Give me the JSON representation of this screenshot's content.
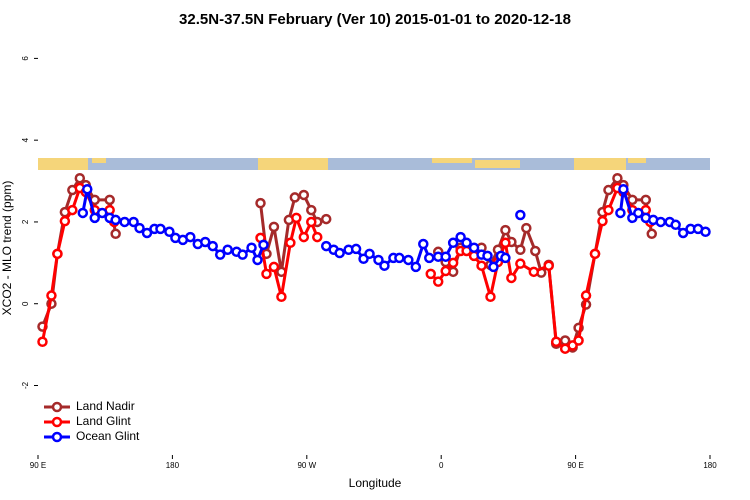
{
  "chart_data": {
    "type": "line",
    "title": "32.5N-37.5N February (Ver 10)   2015-01-01 to 2020-12-18",
    "x_label": "Longitude",
    "y_label": "XCO2 - MLO trend (ppm)",
    "xlim": [
      90,
      540
    ],
    "ylim": [
      -3.7,
      6.45
    ],
    "xticks": [
      {
        "value": 90,
        "label": "90 E"
      },
      180,
      {
        "value": 270,
        "label": "90 W"
      },
      {
        "value": 360,
        "label": "0"
      },
      {
        "value": 450,
        "label": "90 E"
      },
      {
        "value": 540,
        "label": "180"
      }
    ],
    "yticks": [
      -2,
      0,
      2,
      4,
      6
    ],
    "legend": "bottom-left",
    "series": [
      {
        "name": "Land Nadir",
        "color": "#a52a2a",
        "x": [
          93,
          99,
          103,
          108,
          113,
          118,
          122,
          128,
          138,
          142,
          null,
          239,
          243,
          248,
          253,
          258,
          262,
          268,
          273,
          277,
          283,
          null,
          358,
          363,
          368,
          373,
          377,
          382,
          387,
          393,
          398,
          403,
          407,
          413,
          417,
          423,
          427,
          432,
          437,
          443,
          448,
          452,
          457,
          463,
          468,
          472,
          478,
          482,
          488,
          497,
          501
        ],
        "values": [
          -0.56,
          0,
          1.22,
          2.24,
          2.78,
          3.07,
          2.9,
          2.54,
          2.54,
          1.71,
          null,
          2.46,
          1.22,
          1.88,
          0.78,
          2.05,
          2.6,
          2.66,
          2.29,
          2.0,
          2.07,
          null,
          1.27,
          1.02,
          0.78,
          1.37,
          1.44,
          1.34,
          1.37,
          0.95,
          1.32,
          1.8,
          1.51,
          1.32,
          1.85,
          1.29,
          0.76,
          0.95,
          -0.98,
          -0.9,
          -1.07,
          -0.59,
          -0.02,
          1.22,
          2.24,
          2.78,
          3.07,
          2.9,
          2.54,
          2.54,
          1.71
        ]
      },
      {
        "name": "Land Glint",
        "color": "#ff0000",
        "x": [
          93,
          99,
          103,
          108,
          113,
          118,
          122,
          128,
          138,
          141,
          null,
          239,
          243,
          248,
          253,
          259,
          263,
          268,
          273,
          277,
          null,
          353,
          358,
          363,
          368,
          373,
          377,
          382,
          387,
          393,
          398,
          403,
          407,
          413,
          422,
          432,
          437,
          443,
          448,
          452,
          457,
          463,
          468,
          472,
          478,
          482,
          488,
          497,
          500
        ],
        "values": [
          -0.93,
          0.2,
          1.22,
          2.02,
          2.29,
          2.83,
          2.73,
          2.29,
          2.29,
          2.0,
          null,
          1.61,
          0.73,
          0.9,
          0.17,
          1.49,
          2.1,
          1.63,
          2.0,
          1.63,
          null,
          0.73,
          0.54,
          0.8,
          1.0,
          1.29,
          1.29,
          1.17,
          0.93,
          0.17,
          1.02,
          1.49,
          0.63,
          0.98,
          0.78,
          0.93,
          -0.93,
          -1.1,
          -1.02,
          -0.9,
          0.2,
          1.22,
          2.02,
          2.29,
          2.83,
          2.73,
          2.29,
          2.29,
          2.0
        ]
      },
      {
        "name": "Ocean Glint",
        "color": "#0000ff",
        "x": [
          120,
          123,
          128,
          133,
          138,
          142,
          148,
          154,
          158,
          163,
          168,
          172,
          178,
          182,
          187,
          192,
          197,
          202,
          207,
          212,
          217,
          223,
          227,
          233,
          237,
          241,
          null,
          283,
          288,
          292,
          298,
          303,
          308,
          312,
          318,
          322,
          328,
          332,
          338,
          343,
          348,
          352,
          358,
          363,
          368,
          373,
          377,
          382,
          387,
          391,
          395,
          400,
          403,
          null,
          413,
          null,
          480,
          482,
          488,
          492,
          497,
          502,
          507,
          513,
          517,
          522,
          527,
          532,
          537
        ],
        "values": [
          2.22,
          2.8,
          2.1,
          2.22,
          2.1,
          2.05,
          2.0,
          2.0,
          1.85,
          1.73,
          1.83,
          1.83,
          1.76,
          1.61,
          1.56,
          1.63,
          1.46,
          1.51,
          1.41,
          1.2,
          1.32,
          1.27,
          1.2,
          1.37,
          1.07,
          1.44,
          null,
          1.41,
          1.32,
          1.24,
          1.32,
          1.34,
          1.1,
          1.22,
          1.07,
          0.93,
          1.12,
          1.12,
          1.07,
          0.9,
          1.46,
          1.12,
          1.15,
          1.15,
          1.49,
          1.63,
          1.49,
          1.37,
          1.2,
          1.17,
          0.9,
          1.17,
          1.12,
          null,
          2.17,
          null,
          2.22,
          2.8,
          2.1,
          2.22,
          2.1,
          2.05,
          2.0,
          2.0,
          1.93,
          1.73,
          1.83,
          1.83,
          1.76
        ]
      }
    ]
  }
}
